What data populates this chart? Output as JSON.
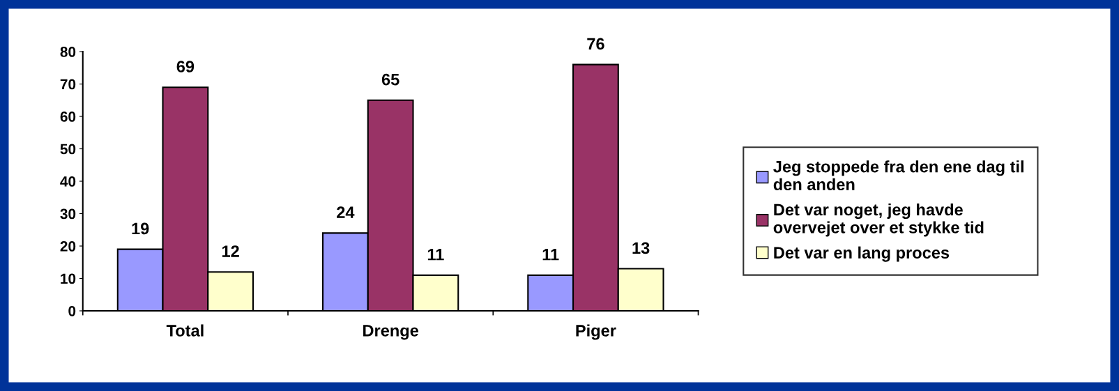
{
  "chart_data": {
    "type": "bar",
    "categories": [
      "Total",
      "Drenge",
      "Piger"
    ],
    "series": [
      {
        "name": "Jeg stoppede fra den ene dag til den anden",
        "color": "#9999ff",
        "values": [
          19,
          24,
          11
        ]
      },
      {
        "name": "Det var noget, jeg havde overvejet over et stykke tid",
        "color": "#993366",
        "values": [
          69,
          65,
          76
        ]
      },
      {
        "name": "Det var en lang proces",
        "color": "#ffffcc",
        "values": [
          12,
          11,
          13
        ]
      }
    ],
    "ylim": [
      0,
      80
    ],
    "yticks": [
      0,
      10,
      20,
      30,
      40,
      50,
      60,
      70,
      80
    ],
    "grid": false,
    "legend": "right",
    "data_labels": true
  }
}
